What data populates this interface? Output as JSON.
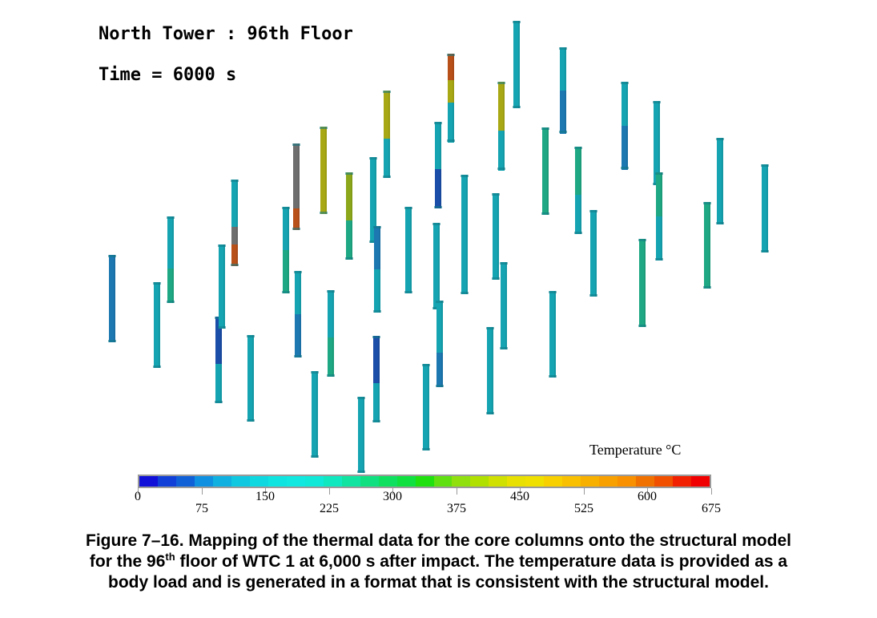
{
  "header": {
    "title": "North Tower : 96th Floor",
    "time": "Time = 6000 s"
  },
  "legend": {
    "title": "Temperature °C",
    "min": 0,
    "max": 675,
    "colors": [
      "#1010d8",
      "#1040d8",
      "#1060d8",
      "#1090e0",
      "#10b0e0",
      "#10c8e0",
      "#10d8e0",
      "#10e4e0",
      "#10e8e0",
      "#10e8d8",
      "#10e8c0",
      "#10e4a0",
      "#10e080",
      "#10e060",
      "#10e040",
      "#20e010",
      "#60e010",
      "#90e010",
      "#b0e000",
      "#d0e000",
      "#e8e000",
      "#f0e000",
      "#f8d000",
      "#f8c000",
      "#f8b000",
      "#f8a000",
      "#f89000",
      "#f07000",
      "#f05000",
      "#f02000",
      "#f00000"
    ],
    "ticks": [
      {
        "value": 0,
        "label": "0",
        "row": "upper"
      },
      {
        "value": 75,
        "label": "75",
        "row": "lower"
      },
      {
        "value": 150,
        "label": "150",
        "row": "upper"
      },
      {
        "value": 225,
        "label": "225",
        "row": "lower"
      },
      {
        "value": 300,
        "label": "300",
        "row": "upper"
      },
      {
        "value": 375,
        "label": "375",
        "row": "lower"
      },
      {
        "value": 450,
        "label": "450",
        "row": "upper"
      },
      {
        "value": 525,
        "label": "525",
        "row": "lower"
      },
      {
        "value": 600,
        "label": "600",
        "row": "upper"
      },
      {
        "value": 675,
        "label": "675",
        "row": "lower"
      }
    ]
  },
  "columns_note_colors": {
    "cyan": "#15a4b2",
    "blue": "#1d78b2",
    "darkblue": "#1a4ea8",
    "green": "#1ea883",
    "olive": "#a8a815",
    "orange": "#b8501a",
    "gray": "#6e6e6e",
    "yellowgreen": "#8ca81a"
  },
  "caption": {
    "line1": "Figure 7–16. Mapping of the thermal data for the core columns onto the structural model",
    "line2_pre": "for the 96",
    "line2_sup": "th",
    "line2_post": " floor of WTC 1 at 6,000 s after impact. The temperature data is provided as a",
    "line3": "body load and is generated in a format that is consistent with the structural model."
  }
}
